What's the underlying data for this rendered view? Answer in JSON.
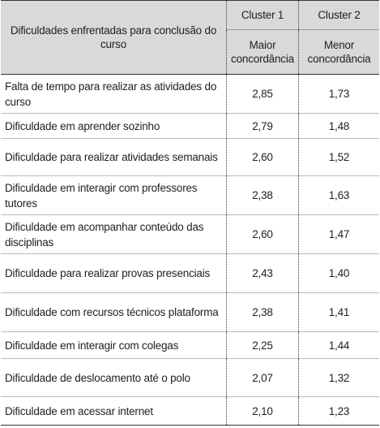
{
  "table": {
    "header": {
      "title": "Dificuldades enfrentadas para conclusão do curso",
      "columns": [
        {
          "cluster": "Cluster 1",
          "label": "Maior concordância"
        },
        {
          "cluster": "Cluster 2",
          "label": "Menor concordância"
        }
      ]
    },
    "rows": [
      [
        "Falta de tempo para realizar as atividades do curso",
        "2,85",
        "1,73"
      ],
      [
        "Dificuldade em aprender sozinho",
        "2,79",
        "1,48"
      ],
      [
        "Dificuldade para realizar atividades semanais",
        "2,60",
        "1,52"
      ],
      [
        "Dificuldade em interagir com professores tutores",
        "2,38",
        "1,63"
      ],
      [
        "Dificuldade em acompanhar conteúdo das disciplinas",
        "2,60",
        "1,47"
      ],
      [
        "Dificuldade para realizar provas presenciais",
        "2,43",
        "1,40"
      ],
      [
        "Dificuldade com recursos técnicos plataforma",
        "2,38",
        "1,41"
      ],
      [
        "Dificuldade em interagir com colegas",
        "2,25",
        "1,44"
      ],
      [
        "Dificuldade de deslocamento até o polo",
        "2,07",
        "1,32"
      ],
      [
        "Dificuldade em acessar internet",
        "2,10",
        "1,23"
      ]
    ]
  }
}
